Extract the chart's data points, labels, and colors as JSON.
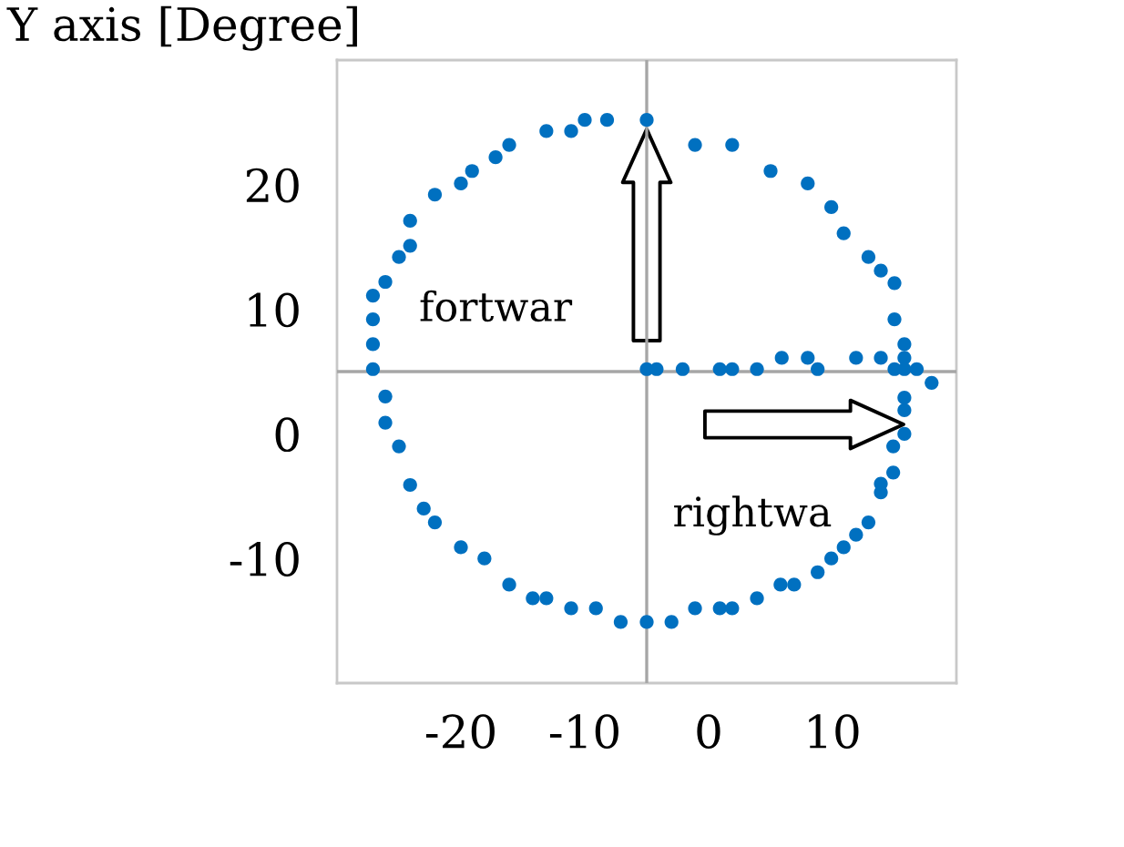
{
  "chart_data": {
    "type": "scatter",
    "ylabel": "Y axis [Degree]",
    "x": [
      -5.0,
      -8.2,
      -10.0,
      -11.1,
      -13.1,
      -16.1,
      -17.2,
      -19.1,
      -20.0,
      -22.1,
      -24.1,
      -24.1,
      -25.0,
      -26.1,
      -27.1,
      -27.1,
      -27.1,
      -27.1,
      -26.1,
      -26.1,
      -25.0,
      -24.1,
      -23.0,
      -22.1,
      -20.0,
      -18.1,
      -16.1,
      -14.2,
      -13.1,
      -11.1,
      -9.1,
      -7.1,
      -5.0,
      -3.0,
      -1.1,
      0.9,
      1.9,
      3.9,
      5.8,
      6.9,
      8.8,
      9.9,
      10.9,
      11.9,
      12.9,
      13.9,
      13.9,
      14.9,
      14.9,
      15.8,
      15.8,
      15.8,
      18.0,
      15.8,
      15.8,
      15.0,
      15.0,
      13.9,
      12.9,
      10.9,
      9.9,
      8.0,
      5.0,
      1.9,
      -1.1,
      -5.0,
      -4.2,
      -2.1,
      0.9,
      1.9,
      3.9,
      5.9,
      8.0,
      8.8,
      11.9,
      13.9,
      15.0,
      15.8,
      16.8
    ],
    "series": [
      {
        "color": "#0070c0",
        "values": [
          25.2,
          25.2,
          25.2,
          24.3,
          24.3,
          23.2,
          22.2,
          21.1,
          20.1,
          19.2,
          17.1,
          15.1,
          14.2,
          12.2,
          11.1,
          9.2,
          7.2,
          5.2,
          3.0,
          0.9,
          -1.0,
          -4.1,
          -6.0,
          -7.1,
          -9.1,
          -10.0,
          -12.1,
          -13.2,
          -13.2,
          -14.0,
          -14.0,
          -15.1,
          -15.1,
          -15.1,
          -14.0,
          -14.0,
          -14.0,
          -13.2,
          -12.1,
          -12.1,
          -11.1,
          -10.0,
          -9.1,
          -8.1,
          -7.1,
          -4.7,
          -4.0,
          -3.1,
          -1.0,
          0.0,
          1.9,
          2.9,
          4.1,
          6.1,
          7.2,
          9.2,
          12.1,
          13.1,
          14.2,
          16.1,
          18.2,
          20.1,
          21.1,
          23.2,
          23.2,
          5.2,
          5.2,
          5.2,
          5.2,
          5.2,
          5.2,
          6.1,
          6.1,
          5.2,
          6.1,
          6.1,
          5.2,
          5.2,
          5.2
        ]
      }
    ],
    "marker": "circle",
    "xlim": [
      -30,
      20
    ],
    "ylim": [
      -20,
      30
    ],
    "xticks": [
      -20,
      -10,
      0,
      10
    ],
    "yticks": [
      -10,
      0,
      10,
      20
    ],
    "ref_lines": [
      {
        "axis": "x",
        "value": -5,
        "color": "#a6a6a6"
      },
      {
        "axis": "y",
        "value": 5,
        "color": "#a6a6a6"
      }
    ],
    "annotations": [
      "fortwar",
      "rightwa"
    ]
  }
}
